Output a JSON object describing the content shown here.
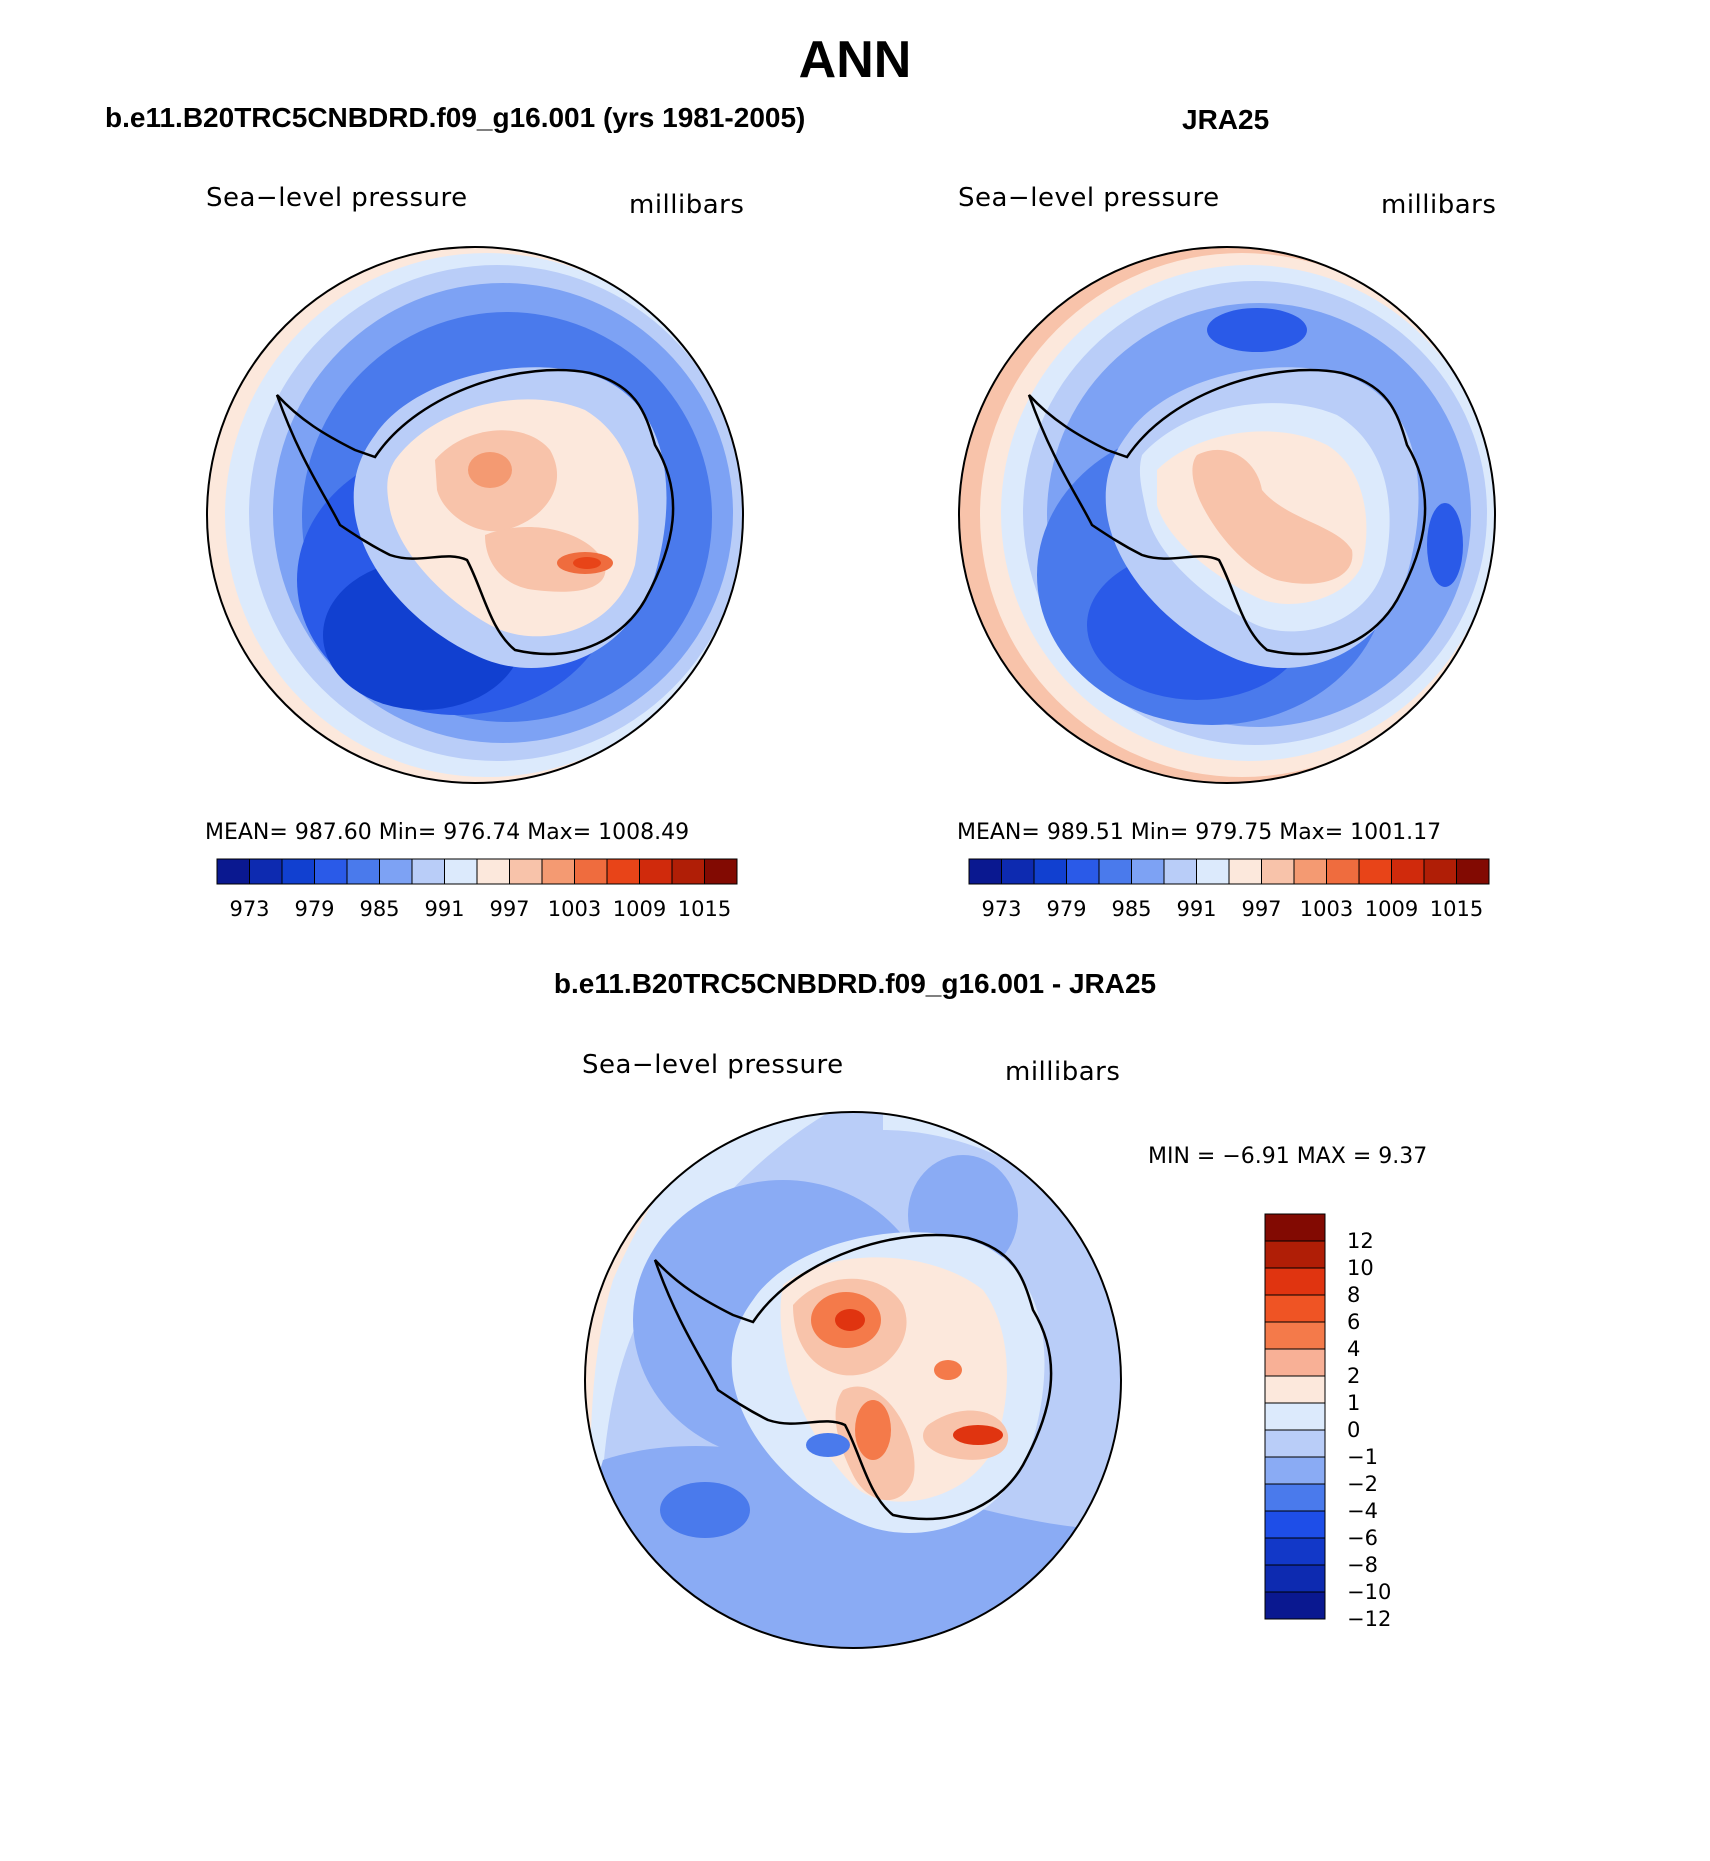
{
  "title": "ANN",
  "colors": {
    "ocean_deep": "#1f4fe0",
    "ocean_mid": "#4477ee",
    "ocean_light": "#bcd0fa",
    "ice_light": "#fbe6dc",
    "ice_warm": "#f5ad8e",
    "ice_hot": "#e84418"
  },
  "panels": [
    {
      "title": "b.e11.B20TRC5CNBDRD.f09_g16.001 (yrs 1981-2005)",
      "variable": "Sea−level pressure",
      "units": "millibars",
      "stats": "MEAN=  987.60   Min=  976.74   Max=  1008.49",
      "colorbar": {
        "colors": [
          "#0a1890",
          "#0d2ab0",
          "#1140d0",
          "#2a5ae8",
          "#4a7aec",
          "#7da2f4",
          "#b9cdf8",
          "#dceafc",
          "#fce8dc",
          "#f8c3aa",
          "#f49a72",
          "#ef6c3e",
          "#e84418",
          "#d02a0c",
          "#b01e06",
          "#820a02"
        ],
        "labels": [
          "973",
          "979",
          "985",
          "991",
          "997",
          "1003",
          "1009",
          "1015"
        ]
      }
    },
    {
      "title": "JRA25",
      "variable": "Sea−level pressure",
      "units": "millibars",
      "stats": "MEAN=  989.51   Min=  979.75   Max=  1001.17",
      "colorbar": {
        "colors": [
          "#0a1890",
          "#0d2ab0",
          "#1140d0",
          "#2a5ae8",
          "#4a7aec",
          "#7da2f4",
          "#b9cdf8",
          "#dceafc",
          "#fce8dc",
          "#f8c3aa",
          "#f49a72",
          "#ef6c3e",
          "#e84418",
          "#d02a0c",
          "#b01e06",
          "#820a02"
        ],
        "labels": [
          "973",
          "979",
          "985",
          "991",
          "997",
          "1003",
          "1009",
          "1015"
        ]
      }
    },
    {
      "title": "b.e11.B20TRC5CNBDRD.f09_g16.001 - JRA25",
      "variable": "Sea−level pressure",
      "units": "millibars",
      "stats": "MIN =   −6.91  MAX =     9.37",
      "colorbar": {
        "colors": [
          "#820a02",
          "#b01e06",
          "#e03410",
          "#ef5424",
          "#f47a4a",
          "#f8b096",
          "#fce8dc",
          "#dceafc",
          "#b9cdf8",
          "#8aabf4",
          "#4a7aec",
          "#1e4ee8",
          "#1238c8",
          "#0d2ab0",
          "#0a1890"
        ],
        "labels": [
          "12",
          "10",
          "8",
          "6",
          "4",
          "2",
          "1",
          "0",
          "−1",
          "−2",
          "−4",
          "−6",
          "−8",
          "−10",
          "−12"
        ]
      }
    }
  ]
}
